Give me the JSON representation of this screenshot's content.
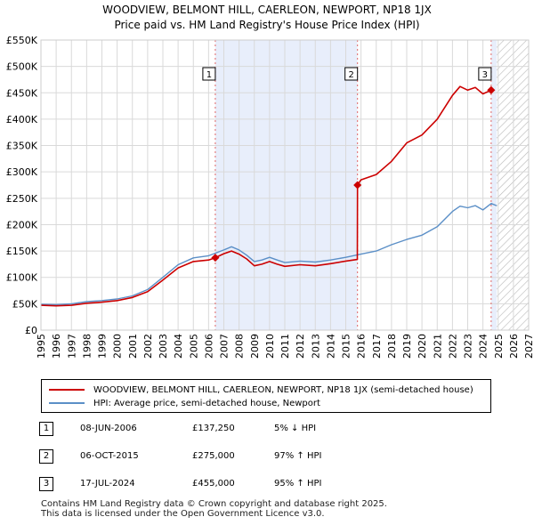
{
  "header": {
    "title_line1": "WOODVIEW, BELMONT HILL, CAERLEON, NEWPORT, NP18 1JX",
    "title_line2": "Price paid vs. HM Land Registry's House Price Index (HPI)"
  },
  "chart_data": {
    "type": "line",
    "x_range": [
      1995,
      2027
    ],
    "y_range": [
      0,
      550000
    ],
    "x_ticks": [
      "1995",
      "1996",
      "1997",
      "1998",
      "1999",
      "2000",
      "2001",
      "2002",
      "2003",
      "2004",
      "2005",
      "2006",
      "2007",
      "2008",
      "2009",
      "2010",
      "2011",
      "2012",
      "2013",
      "2014",
      "2015",
      "2016",
      "2017",
      "2018",
      "2019",
      "2020",
      "2021",
      "2022",
      "2023",
      "2024",
      "2025",
      "2026",
      "2027"
    ],
    "y_ticks": [
      {
        "value": 0,
        "label": "£0"
      },
      {
        "value": 50000,
        "label": "£50K"
      },
      {
        "value": 100000,
        "label": "£100K"
      },
      {
        "value": 150000,
        "label": "£150K"
      },
      {
        "value": 200000,
        "label": "£200K"
      },
      {
        "value": 250000,
        "label": "£250K"
      },
      {
        "value": 300000,
        "label": "£300K"
      },
      {
        "value": 350000,
        "label": "£350K"
      },
      {
        "value": 400000,
        "label": "£400K"
      },
      {
        "value": 450000,
        "label": "£450K"
      },
      {
        "value": 500000,
        "label": "£500K"
      },
      {
        "value": 550000,
        "label": "£550K"
      }
    ],
    "shaded_ranges": [
      {
        "from": 2006.44,
        "to": 2015.77,
        "style": "between-sales"
      },
      {
        "from": 2024.54,
        "to": 2024.9,
        "style": "between-sales"
      },
      {
        "from": 2024.9,
        "to": 2027,
        "style": "projection-hatch"
      }
    ],
    "series": [
      {
        "name": "WOODVIEW, BELMONT HILL, CAERLEON, NEWPORT, NP18 1JX (semi-detached house)",
        "color": "#cc0000",
        "points": [
          [
            1995,
            47000
          ],
          [
            1996,
            46000
          ],
          [
            1997,
            47000
          ],
          [
            1998,
            51000
          ],
          [
            1999,
            53000
          ],
          [
            2000,
            56000
          ],
          [
            2001,
            62000
          ],
          [
            2002,
            73000
          ],
          [
            2003,
            95000
          ],
          [
            2004,
            118000
          ],
          [
            2005,
            130000
          ],
          [
            2006,
            133000
          ],
          [
            2006.44,
            137250
          ],
          [
            2007,
            145000
          ],
          [
            2007.5,
            150000
          ],
          [
            2008,
            144000
          ],
          [
            2008.5,
            135000
          ],
          [
            2009,
            122000
          ],
          [
            2009.5,
            125000
          ],
          [
            2010,
            130000
          ],
          [
            2010.5,
            125000
          ],
          [
            2011,
            121000
          ],
          [
            2012,
            124000
          ],
          [
            2013,
            122000
          ],
          [
            2014,
            126000
          ],
          [
            2015,
            131000
          ],
          [
            2015.76,
            134000
          ],
          [
            2015.77,
            275000
          ],
          [
            2016,
            285000
          ],
          [
            2017,
            295000
          ],
          [
            2018,
            320000
          ],
          [
            2019,
            355000
          ],
          [
            2020,
            370000
          ],
          [
            2021,
            400000
          ],
          [
            2022,
            445000
          ],
          [
            2022.5,
            462000
          ],
          [
            2023,
            455000
          ],
          [
            2023.5,
            460000
          ],
          [
            2024,
            448000
          ],
          [
            2024.54,
            455000
          ]
        ]
      },
      {
        "name": "HPI: Average price, semi-detached house, Newport",
        "color": "#5b8fc7",
        "points": [
          [
            1995,
            49000
          ],
          [
            1996,
            48500
          ],
          [
            1997,
            50000
          ],
          [
            1998,
            54000
          ],
          [
            1999,
            56000
          ],
          [
            2000,
            59000
          ],
          [
            2001,
            65000
          ],
          [
            2002,
            77000
          ],
          [
            2003,
            100000
          ],
          [
            2004,
            124000
          ],
          [
            2005,
            137000
          ],
          [
            2006,
            141000
          ],
          [
            2007,
            152000
          ],
          [
            2007.5,
            158000
          ],
          [
            2008,
            152000
          ],
          [
            2008.5,
            142000
          ],
          [
            2009,
            130000
          ],
          [
            2009.5,
            133000
          ],
          [
            2010,
            138000
          ],
          [
            2010.5,
            133000
          ],
          [
            2011,
            128000
          ],
          [
            2012,
            131000
          ],
          [
            2013,
            129000
          ],
          [
            2014,
            133000
          ],
          [
            2015,
            138000
          ],
          [
            2016,
            144000
          ],
          [
            2017,
            150000
          ],
          [
            2018,
            162000
          ],
          [
            2019,
            172000
          ],
          [
            2020,
            180000
          ],
          [
            2021,
            196000
          ],
          [
            2022,
            225000
          ],
          [
            2022.5,
            235000
          ],
          [
            2023,
            232000
          ],
          [
            2023.5,
            236000
          ],
          [
            2024,
            228000
          ],
          [
            2024.54,
            240000
          ],
          [
            2024.9,
            236000
          ]
        ]
      }
    ],
    "sales": [
      {
        "label": "1",
        "x": 2006.44,
        "value": 137250
      },
      {
        "label": "2",
        "x": 2015.77,
        "value": 275000
      },
      {
        "label": "3",
        "x": 2024.54,
        "value": 455000
      }
    ]
  },
  "legend": {
    "property_label": "WOODVIEW, BELMONT HILL, CAERLEON, NEWPORT, NP18 1JX (semi-detached house)",
    "hpi_label": "HPI: Average price, semi-detached house, Newport",
    "property_color": "#cc0000",
    "hpi_color": "#5b8fc7"
  },
  "sales_table": [
    {
      "num": "1",
      "date": "08-JUN-2006",
      "price": "£137,250",
      "hpi": "5% ↓ HPI"
    },
    {
      "num": "2",
      "date": "06-OCT-2015",
      "price": "£275,000",
      "hpi": "97% ↑ HPI"
    },
    {
      "num": "3",
      "date": "17-JUL-2024",
      "price": "£455,000",
      "hpi": "95% ↑ HPI"
    }
  ],
  "footer": {
    "line1": "Contains HM Land Registry data © Crown copyright and database right 2025.",
    "line2": "This data is licensed under the Open Government Licence v3.0."
  }
}
